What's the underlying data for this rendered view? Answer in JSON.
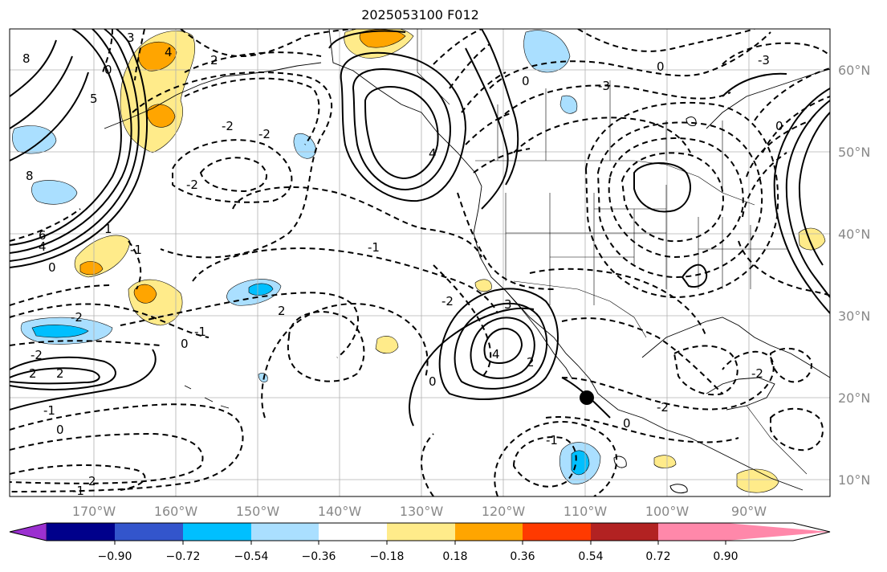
{
  "title": "2025053100 F012",
  "lon_labels": [
    "170°W",
    "160°W",
    "150°W",
    "140°W",
    "130°W",
    "120°W",
    "110°W",
    "100°W",
    "90°W"
  ],
  "lat_labels": [
    "60°N",
    "50°N",
    "40°N",
    "30°N",
    "20°N",
    "10°N"
  ],
  "colorbar": {
    "ticks": [
      "−0.90",
      "−0.72",
      "−0.54",
      "−0.36",
      "−0.18",
      "0.18",
      "0.36",
      "0.54",
      "0.72",
      "0.90"
    ],
    "colors": [
      "#9b30d0",
      "#00008b",
      "#3355cc",
      "#00bfff",
      "#aadfff",
      "#ffffff",
      "#ffeb8a",
      "#ffa500",
      "#ff3a00",
      "#b22222",
      "#ff88aa"
    ]
  },
  "contour_labels": [
    "8",
    "5",
    "3",
    "4",
    "0",
    "2",
    "-2",
    "8",
    "6",
    "4",
    "0",
    "-2",
    "-1",
    "0",
    "2",
    "-2",
    "-3",
    "0",
    "-1",
    "-2",
    "0",
    "3",
    "4",
    "2",
    "-1",
    "0",
    "1",
    "-2",
    "-3",
    "0",
    "2",
    "-1",
    "0",
    "2",
    "-2",
    "-1",
    "-2",
    "0",
    "-2",
    "-1",
    "2",
    "4"
  ]
}
